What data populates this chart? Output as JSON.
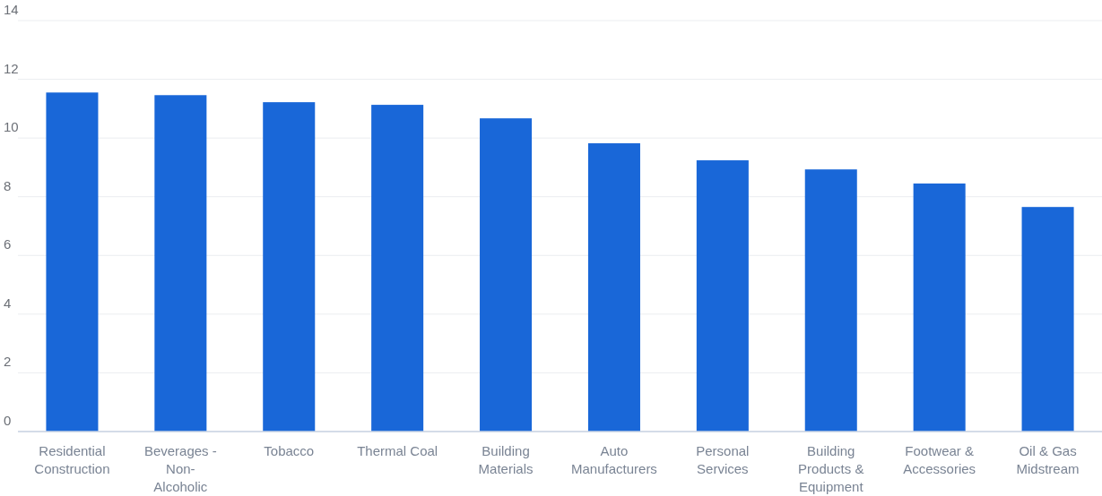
{
  "chart_data": {
    "type": "bar",
    "categories": [
      "Residential Construction",
      "Beverages - Non-Alcoholic",
      "Tobacco",
      "Thermal Coal",
      "Building Materials",
      "Auto Manufacturers",
      "Personal Services",
      "Building Products & Equipment",
      "Footwear & Accessories",
      "Oil & Gas Midstream"
    ],
    "values": [
      11.55,
      11.46,
      11.22,
      11.13,
      10.67,
      9.82,
      9.24,
      8.93,
      8.45,
      7.65
    ],
    "color": "#1967d8",
    "ylim": [
      0,
      14
    ],
    "yticks": [
      0,
      2,
      4,
      6,
      8,
      10,
      12,
      14
    ],
    "grid": "y"
  }
}
